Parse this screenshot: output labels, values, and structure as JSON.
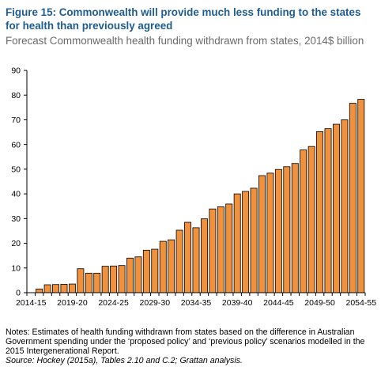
{
  "header": {
    "title": "Figure 15: Commonwealth will provide much less funding to the states for health than previously agreed",
    "subtitle": "Forecast Commonwealth health funding withdrawn from states, 2014$ billion"
  },
  "footer": {
    "notes": "Notes: Estimates of health funding withdrawn from states based on the difference in Australian Government spending under the ‘proposed policy’ and ‘previous policy’ scenarios modelled in the 2015 Intergenerational Report.",
    "source": "Source: Hockey (2015a), Tables 2.10 and C.2; Grattan analysis."
  },
  "colors": {
    "bar_fill": "#f0913e",
    "bar_stroke": "#000000",
    "axis": "#000000"
  },
  "chart_data": {
    "type": "bar",
    "title": "Figure 15: Commonwealth will provide much less funding to the states for health than previously agreed",
    "subtitle": "Forecast Commonwealth health funding withdrawn from states, 2014$ billion",
    "xlabel": "",
    "ylabel": "",
    "ylim": [
      0,
      90
    ],
    "yticks": [
      0,
      10,
      20,
      30,
      40,
      50,
      60,
      70,
      80,
      90
    ],
    "grid": false,
    "categories": [
      "2014-15",
      "2015-16",
      "2016-17",
      "2017-18",
      "2018-19",
      "2019-20",
      "2020-21",
      "2021-22",
      "2022-23",
      "2023-24",
      "2024-25",
      "2025-26",
      "2026-27",
      "2027-28",
      "2028-29",
      "2029-30",
      "2030-31",
      "2031-32",
      "2032-33",
      "2033-34",
      "2034-35",
      "2035-36",
      "2036-37",
      "2037-38",
      "2038-39",
      "2039-40",
      "2040-41",
      "2041-42",
      "2042-43",
      "2043-44",
      "2044-45",
      "2045-46",
      "2046-47",
      "2047-48",
      "2048-49",
      "2049-50",
      "2050-51",
      "2051-52",
      "2052-53",
      "2053-54",
      "2054-55"
    ],
    "tick_labels": [
      "2014-15",
      "2019-20",
      "2024-25",
      "2029-30",
      "2034-35",
      "2039-40",
      "2044-45",
      "2049-50",
      "2054-55"
    ],
    "values": [
      0,
      1.5,
      3.2,
      3.3,
      3.4,
      3.5,
      9.7,
      7.9,
      7.9,
      10.7,
      10.8,
      11.0,
      14.0,
      14.5,
      17.2,
      17.6,
      20.8,
      21.4,
      25.3,
      28.5,
      26.3,
      29.9,
      33.9,
      34.8,
      35.9,
      40.0,
      41.0,
      42.3,
      47.4,
      48.4,
      49.9,
      51.0,
      52.3,
      57.8,
      59.2,
      65.2,
      66.4,
      68.2,
      70.0,
      76.7,
      78.3
    ]
  }
}
